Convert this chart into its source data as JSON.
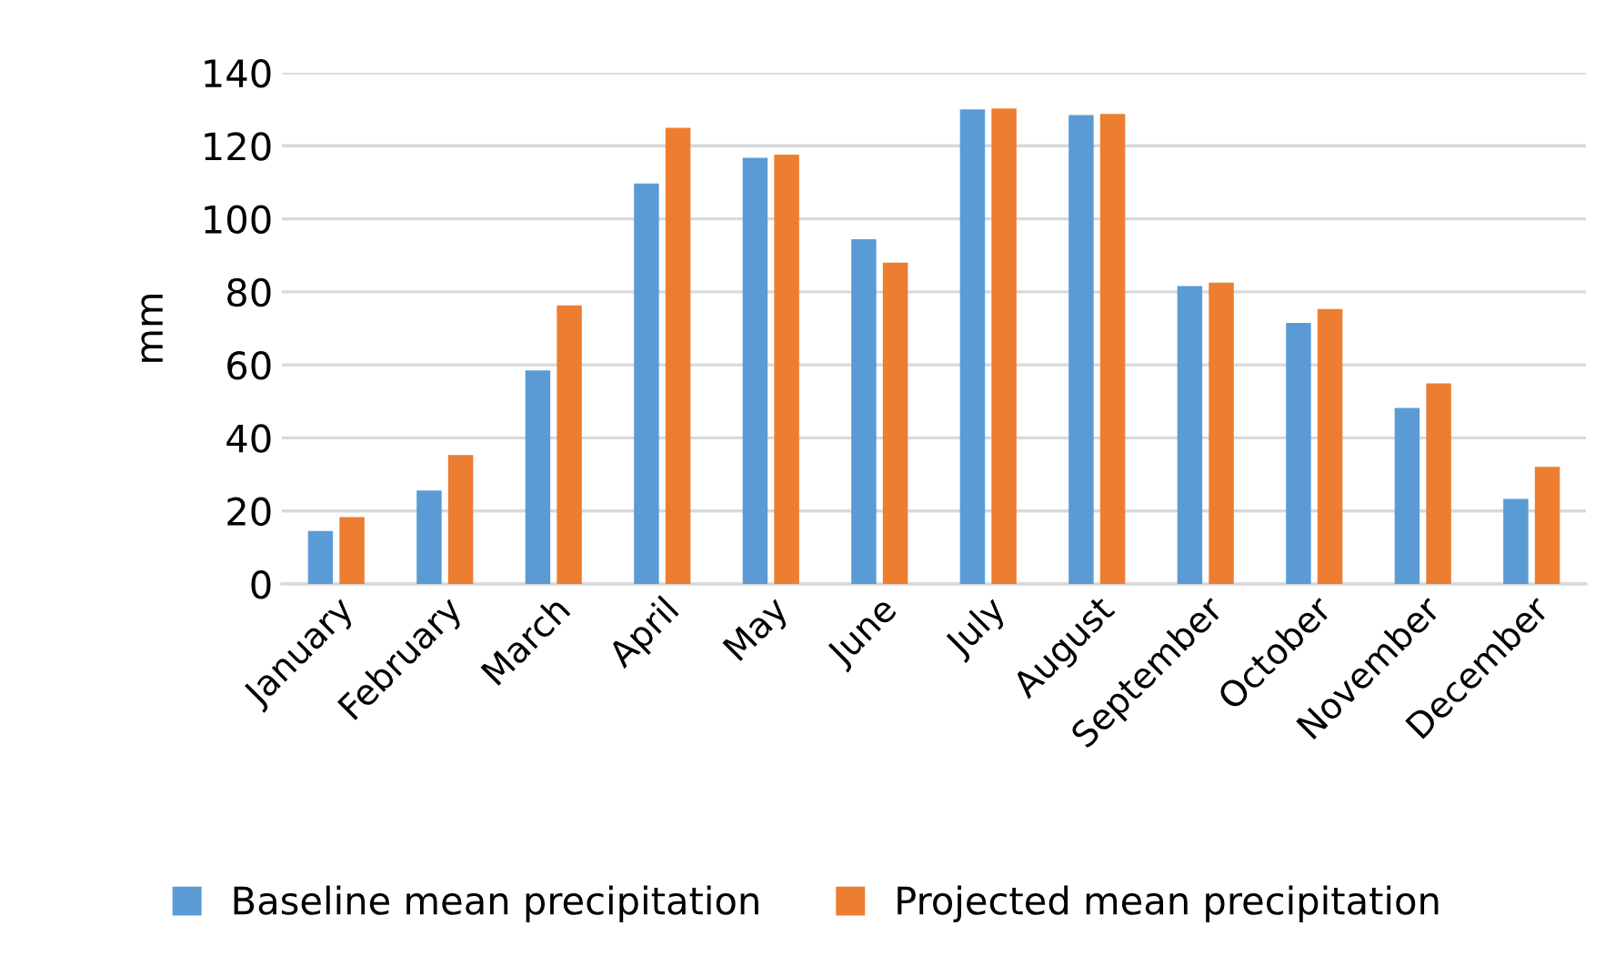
{
  "chart_data": {
    "type": "bar",
    "ylabel": "mm",
    "categories": [
      "January",
      "February",
      "March",
      "April",
      "May",
      "June",
      "July",
      "August",
      "September",
      "October",
      "November",
      "December"
    ],
    "series": [
      {
        "name": "Baseline mean precipitation",
        "color": "#5b9bd5",
        "values": [
          14.5,
          25.6,
          58.5,
          109.7,
          116.7,
          94.4,
          130.0,
          128.4,
          81.6,
          71.5,
          48.2,
          23.3
        ]
      },
      {
        "name": "Projected mean precipitation",
        "color": "#ed7d31",
        "values": [
          18.3,
          35.3,
          76.3,
          124.9,
          117.6,
          88.0,
          130.2,
          128.7,
          82.5,
          75.3,
          54.9,
          32.1
        ]
      }
    ],
    "ylim": [
      0,
      140
    ],
    "yticks": [
      0,
      20,
      40,
      60,
      80,
      100,
      120,
      140
    ],
    "grid": "y",
    "legend": "bottom"
  }
}
